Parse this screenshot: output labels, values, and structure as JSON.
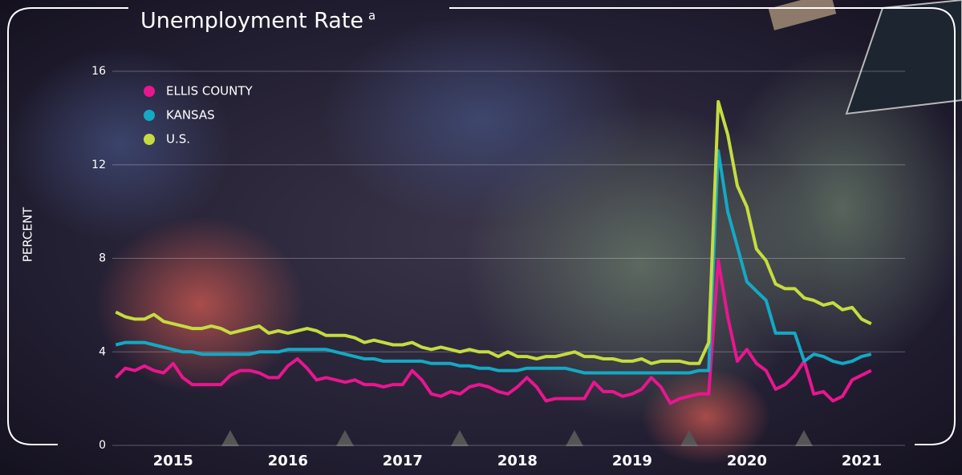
{
  "chart_data": {
    "type": "line",
    "title": "Unemployment Rate",
    "title_superscript": "a",
    "y_label": "PERCENT",
    "x": [
      2015,
      2015.083,
      2015.167,
      2015.25,
      2015.333,
      2015.417,
      2015.5,
      2015.583,
      2015.667,
      2015.75,
      2015.833,
      2015.917,
      2016,
      2016.083,
      2016.167,
      2016.25,
      2016.333,
      2016.417,
      2016.5,
      2016.583,
      2016.667,
      2016.75,
      2016.833,
      2016.917,
      2017,
      2017.083,
      2017.167,
      2017.25,
      2017.333,
      2017.417,
      2017.5,
      2017.583,
      2017.667,
      2017.75,
      2017.833,
      2017.917,
      2018,
      2018.083,
      2018.167,
      2018.25,
      2018.333,
      2018.417,
      2018.5,
      2018.583,
      2018.667,
      2018.75,
      2018.833,
      2018.917,
      2019,
      2019.083,
      2019.167,
      2019.25,
      2019.333,
      2019.417,
      2019.5,
      2019.583,
      2019.667,
      2019.75,
      2019.833,
      2019.917,
      2020,
      2020.083,
      2020.167,
      2020.25,
      2020.333,
      2020.417,
      2020.5,
      2020.583,
      2020.667,
      2020.75,
      2020.833,
      2020.917,
      2021,
      2021.083,
      2021.167,
      2021.25,
      2021.333,
      2021.417,
      2021.5,
      2021.583
    ],
    "series": [
      {
        "name": "ELLIS COUNTY",
        "color": "#e8168f",
        "values": [
          2.9,
          3.3,
          3.2,
          3.4,
          3.2,
          3.1,
          3.5,
          2.9,
          2.6,
          2.6,
          2.6,
          2.6,
          3.0,
          3.2,
          3.2,
          3.1,
          2.9,
          2.9,
          3.4,
          3.7,
          3.3,
          2.8,
          2.9,
          2.8,
          2.7,
          2.8,
          2.6,
          2.6,
          2.5,
          2.6,
          2.6,
          3.2,
          2.8,
          2.2,
          2.1,
          2.3,
          2.2,
          2.5,
          2.6,
          2.5,
          2.3,
          2.2,
          2.5,
          2.9,
          2.5,
          1.9,
          2.0,
          2.0,
          2.0,
          2.0,
          2.7,
          2.3,
          2.3,
          2.1,
          2.2,
          2.4,
          2.9,
          2.5,
          1.8,
          2.0,
          2.1,
          2.2,
          2.2,
          7.9,
          5.5,
          3.6,
          4.1,
          3.5,
          3.2,
          2.4,
          2.6,
          3.0,
          3.6,
          2.2,
          2.3,
          1.9,
          2.1,
          2.8,
          3.0,
          3.2
        ]
      },
      {
        "name": "KANSAS",
        "color": "#14a9c4",
        "values": [
          4.3,
          4.4,
          4.4,
          4.4,
          4.3,
          4.2,
          4.1,
          4.0,
          4.0,
          3.9,
          3.9,
          3.9,
          3.9,
          3.9,
          3.9,
          4.0,
          4.0,
          4.0,
          4.1,
          4.1,
          4.1,
          4.1,
          4.1,
          4.0,
          3.9,
          3.8,
          3.7,
          3.7,
          3.6,
          3.6,
          3.6,
          3.6,
          3.6,
          3.5,
          3.5,
          3.5,
          3.4,
          3.4,
          3.3,
          3.3,
          3.2,
          3.2,
          3.2,
          3.3,
          3.3,
          3.3,
          3.3,
          3.3,
          3.2,
          3.1,
          3.1,
          3.1,
          3.1,
          3.1,
          3.1,
          3.1,
          3.1,
          3.1,
          3.1,
          3.1,
          3.1,
          3.2,
          3.2,
          12.6,
          10.0,
          8.5,
          7.0,
          6.6,
          6.2,
          4.8,
          4.8,
          4.8,
          3.6,
          3.9,
          3.8,
          3.6,
          3.5,
          3.6,
          3.8,
          3.9
        ]
      },
      {
        "name": "U.S.",
        "color": "#c5dc3f",
        "values": [
          5.7,
          5.5,
          5.4,
          5.4,
          5.6,
          5.3,
          5.2,
          5.1,
          5.0,
          5.0,
          5.1,
          5.0,
          4.8,
          4.9,
          5.0,
          5.1,
          4.8,
          4.9,
          4.8,
          4.9,
          5.0,
          4.9,
          4.7,
          4.7,
          4.7,
          4.6,
          4.4,
          4.5,
          4.4,
          4.3,
          4.3,
          4.4,
          4.2,
          4.1,
          4.2,
          4.1,
          4.0,
          4.1,
          4.0,
          4.0,
          3.8,
          4.0,
          3.8,
          3.8,
          3.7,
          3.8,
          3.8,
          3.9,
          4.0,
          3.8,
          3.8,
          3.7,
          3.7,
          3.6,
          3.6,
          3.7,
          3.5,
          3.6,
          3.6,
          3.6,
          3.5,
          3.5,
          4.4,
          14.7,
          13.3,
          11.1,
          10.2,
          8.4,
          7.9,
          6.9,
          6.7,
          6.7,
          6.3,
          6.2,
          6.0,
          6.1,
          5.8,
          5.9,
          5.4,
          5.2
        ]
      }
    ],
    "xlim": [
      2014.97,
      2021.85
    ],
    "xticks": [
      {
        "value": 2015.5,
        "label": "2015"
      },
      {
        "value": 2016.5,
        "label": "2016"
      },
      {
        "value": 2017.5,
        "label": "2017"
      },
      {
        "value": 2018.5,
        "label": "2018"
      },
      {
        "value": 2019.5,
        "label": "2019"
      },
      {
        "value": 2020.5,
        "label": "2020"
      },
      {
        "value": 2021.5,
        "label": "2021"
      }
    ],
    "ylim": [
      0,
      16
    ],
    "yticks": [
      0,
      4,
      8,
      12,
      16
    ],
    "grid": true
  }
}
